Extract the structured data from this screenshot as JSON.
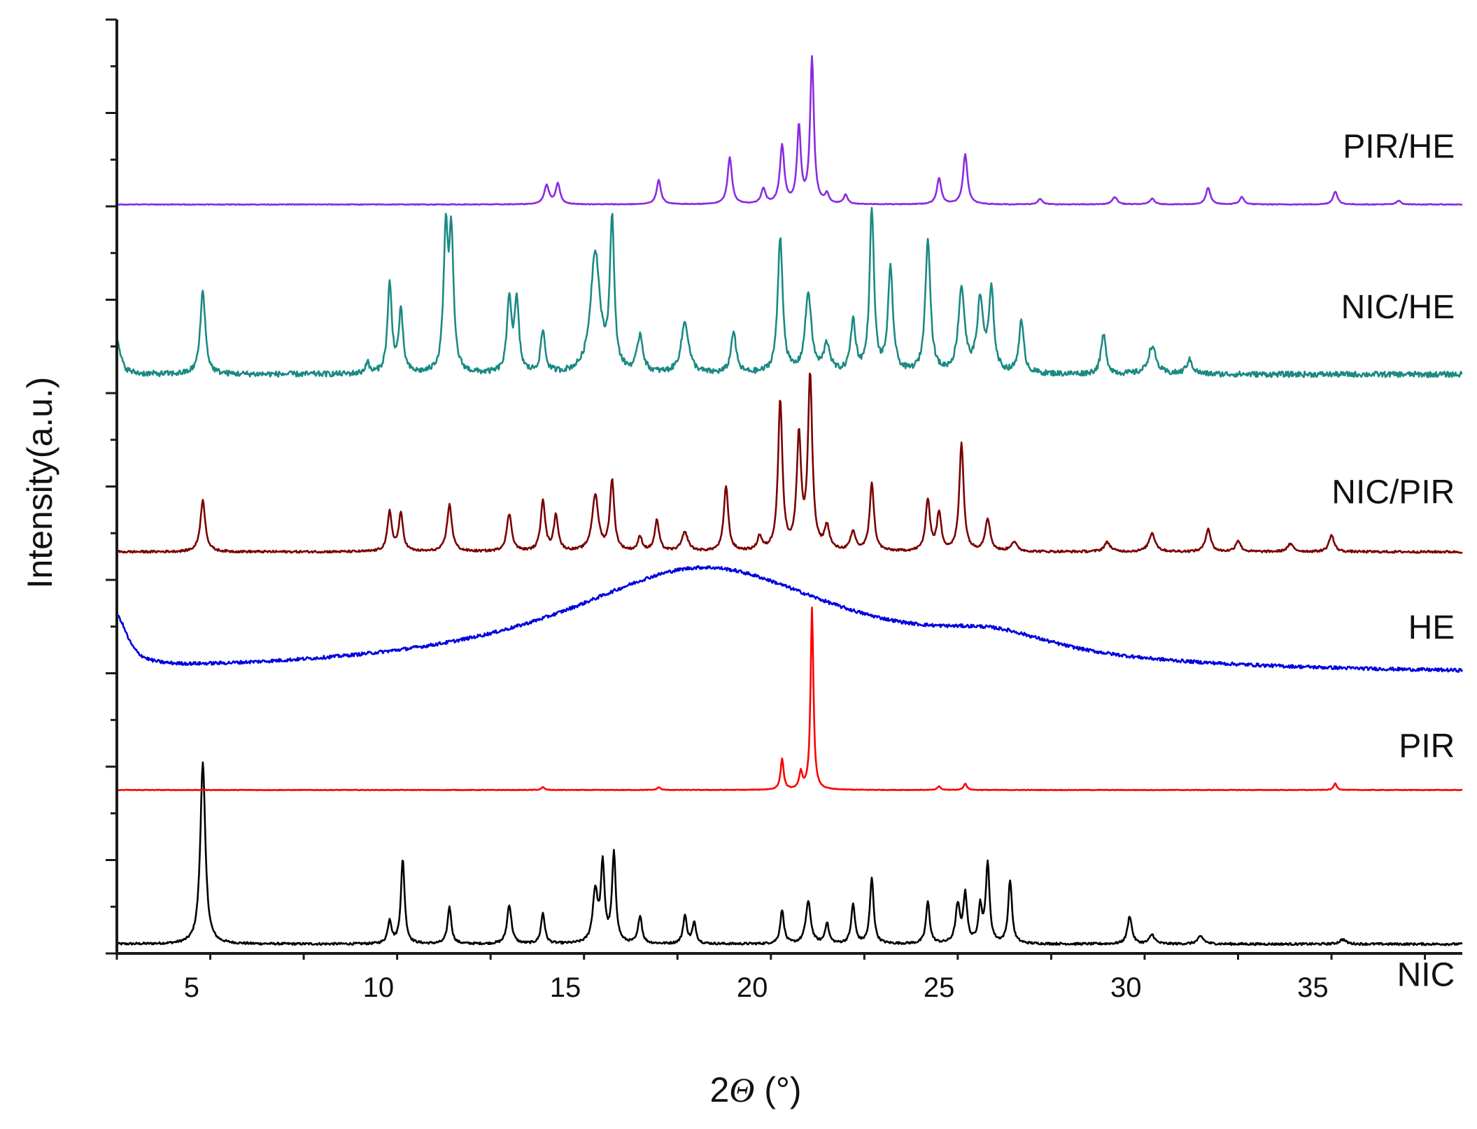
{
  "chart_data": {
    "type": "line",
    "xlabel_main": "2",
    "xlabel_symbol": "Θ",
    "xlabel_unit": " (°)",
    "ylabel": "Intensity(a.u.)",
    "xlim": [
      3,
      39
    ],
    "ylim": [
      0,
      10
    ],
    "x_ticks": [
      5,
      10,
      15,
      20,
      25,
      30,
      35
    ],
    "x_tick_labels": [
      "5",
      "10",
      "15",
      "20",
      "25",
      "30",
      "35"
    ],
    "legend": "inline-right",
    "grid": false,
    "series": [
      {
        "name": "NIC",
        "color": "#000000",
        "kind": "crystal",
        "baseline": 0.1,
        "noise": 0.012,
        "peaks": [
          [
            5.3,
            1.95,
            0.08
          ],
          [
            10.3,
            0.25,
            0.06
          ],
          [
            10.65,
            0.9,
            0.06
          ],
          [
            11.9,
            0.4,
            0.06
          ],
          [
            13.5,
            0.42,
            0.07
          ],
          [
            14.4,
            0.33,
            0.06
          ],
          [
            15.8,
            0.55,
            0.08
          ],
          [
            16.0,
            0.82,
            0.06
          ],
          [
            16.3,
            0.95,
            0.06
          ],
          [
            17.0,
            0.3,
            0.06
          ],
          [
            18.2,
            0.3,
            0.06
          ],
          [
            18.45,
            0.22,
            0.06
          ],
          [
            20.8,
            0.36,
            0.06
          ],
          [
            21.5,
            0.45,
            0.08
          ],
          [
            22.0,
            0.22,
            0.06
          ],
          [
            22.7,
            0.42,
            0.06
          ],
          [
            23.2,
            0.7,
            0.06
          ],
          [
            24.7,
            0.45,
            0.06
          ],
          [
            25.5,
            0.4,
            0.07
          ],
          [
            25.7,
            0.52,
            0.06
          ],
          [
            26.1,
            0.38,
            0.06
          ],
          [
            26.3,
            0.85,
            0.06
          ],
          [
            26.9,
            0.68,
            0.06
          ],
          [
            30.1,
            0.3,
            0.07
          ],
          [
            30.7,
            0.1,
            0.08
          ],
          [
            32.0,
            0.08,
            0.1
          ],
          [
            35.8,
            0.05,
            0.1
          ]
        ]
      },
      {
        "name": "PIR",
        "color": "#ff0000",
        "kind": "crystal",
        "baseline": 1.75,
        "noise": 0.003,
        "peaks": [
          [
            14.4,
            0.03,
            0.05
          ],
          [
            17.5,
            0.03,
            0.05
          ],
          [
            20.8,
            0.33,
            0.05
          ],
          [
            21.3,
            0.18,
            0.05
          ],
          [
            21.6,
            1.95,
            0.045
          ],
          [
            25.0,
            0.04,
            0.05
          ],
          [
            25.7,
            0.07,
            0.05
          ],
          [
            35.6,
            0.07,
            0.05
          ]
        ]
      },
      {
        "name": "HE",
        "color": "#0000dd",
        "kind": "amorphous",
        "baseline": 2.97,
        "noise": 0.018,
        "peaks": [
          [
            3.0,
            0.55,
            0.35
          ],
          [
            18.7,
            1.15,
            4.6
          ],
          [
            26.5,
            0.22,
            2.0
          ]
        ]
      },
      {
        "name": "NIC/PIR",
        "color": "#7a0000",
        "kind": "crystal",
        "baseline": 4.3,
        "noise": 0.012,
        "peaks": [
          [
            5.3,
            0.55,
            0.08
          ],
          [
            10.3,
            0.42,
            0.07
          ],
          [
            10.6,
            0.4,
            0.07
          ],
          [
            11.9,
            0.5,
            0.08
          ],
          [
            13.5,
            0.4,
            0.08
          ],
          [
            14.4,
            0.55,
            0.07
          ],
          [
            14.75,
            0.38,
            0.07
          ],
          [
            15.8,
            0.6,
            0.1
          ],
          [
            16.25,
            0.75,
            0.07
          ],
          [
            17.0,
            0.15,
            0.07
          ],
          [
            17.45,
            0.33,
            0.07
          ],
          [
            18.2,
            0.2,
            0.1
          ],
          [
            19.3,
            0.7,
            0.07
          ],
          [
            20.2,
            0.15,
            0.07
          ],
          [
            20.75,
            1.6,
            0.07
          ],
          [
            21.25,
            1.2,
            0.07
          ],
          [
            21.55,
            1.85,
            0.07
          ],
          [
            22.0,
            0.25,
            0.08
          ],
          [
            22.7,
            0.2,
            0.08
          ],
          [
            23.2,
            0.72,
            0.07
          ],
          [
            24.7,
            0.55,
            0.07
          ],
          [
            25.0,
            0.4,
            0.07
          ],
          [
            25.6,
            1.15,
            0.07
          ],
          [
            26.3,
            0.35,
            0.08
          ],
          [
            27.0,
            0.1,
            0.1
          ],
          [
            29.5,
            0.1,
            0.1
          ],
          [
            30.7,
            0.2,
            0.1
          ],
          [
            32.2,
            0.25,
            0.08
          ],
          [
            33.0,
            0.12,
            0.08
          ],
          [
            34.4,
            0.08,
            0.1
          ],
          [
            35.5,
            0.18,
            0.08
          ]
        ]
      },
      {
        "name": "NIC/HE",
        "color": "#1a8a82",
        "kind": "crystal",
        "baseline": 6.2,
        "noise": 0.03,
        "peaks": [
          [
            3.0,
            0.35,
            0.12
          ],
          [
            5.3,
            0.9,
            0.08
          ],
          [
            9.7,
            0.12,
            0.06
          ],
          [
            10.3,
            0.95,
            0.07
          ],
          [
            10.6,
            0.65,
            0.07
          ],
          [
            11.8,
            1.45,
            0.07
          ],
          [
            11.95,
            1.4,
            0.07
          ],
          [
            13.5,
            0.8,
            0.07
          ],
          [
            13.7,
            0.75,
            0.07
          ],
          [
            14.4,
            0.45,
            0.07
          ],
          [
            15.8,
            1.3,
            0.15
          ],
          [
            16.25,
            1.6,
            0.07
          ],
          [
            17.0,
            0.4,
            0.09
          ],
          [
            18.2,
            0.55,
            0.12
          ],
          [
            19.5,
            0.45,
            0.08
          ],
          [
            20.75,
            1.45,
            0.08
          ],
          [
            21.5,
            0.85,
            0.1
          ],
          [
            22.0,
            0.3,
            0.1
          ],
          [
            22.7,
            0.55,
            0.08
          ],
          [
            23.2,
            1.75,
            0.07
          ],
          [
            23.7,
            1.1,
            0.08
          ],
          [
            24.7,
            1.45,
            0.08
          ],
          [
            25.6,
            0.9,
            0.1
          ],
          [
            26.1,
            0.75,
            0.1
          ],
          [
            26.4,
            0.85,
            0.08
          ],
          [
            27.2,
            0.55,
            0.08
          ],
          [
            29.4,
            0.42,
            0.08
          ],
          [
            30.7,
            0.3,
            0.12
          ],
          [
            31.7,
            0.15,
            0.1
          ]
        ]
      },
      {
        "name": "PIR/HE",
        "color": "#8a2be2",
        "kind": "crystal",
        "baseline": 8.02,
        "noise": 0.004,
        "peaks": [
          [
            14.5,
            0.2,
            0.08
          ],
          [
            14.8,
            0.22,
            0.07
          ],
          [
            17.5,
            0.26,
            0.07
          ],
          [
            19.4,
            0.5,
            0.07
          ],
          [
            20.3,
            0.16,
            0.07
          ],
          [
            20.8,
            0.62,
            0.07
          ],
          [
            21.25,
            0.82,
            0.06
          ],
          [
            21.6,
            1.56,
            0.06
          ],
          [
            22.0,
            0.1,
            0.06
          ],
          [
            22.5,
            0.1,
            0.06
          ],
          [
            25.0,
            0.28,
            0.07
          ],
          [
            25.7,
            0.54,
            0.07
          ],
          [
            27.7,
            0.06,
            0.07
          ],
          [
            29.7,
            0.08,
            0.08
          ],
          [
            30.7,
            0.06,
            0.08
          ],
          [
            32.2,
            0.18,
            0.07
          ],
          [
            33.1,
            0.08,
            0.07
          ],
          [
            35.6,
            0.14,
            0.07
          ],
          [
            37.3,
            0.04,
            0.07
          ]
        ]
      }
    ]
  }
}
